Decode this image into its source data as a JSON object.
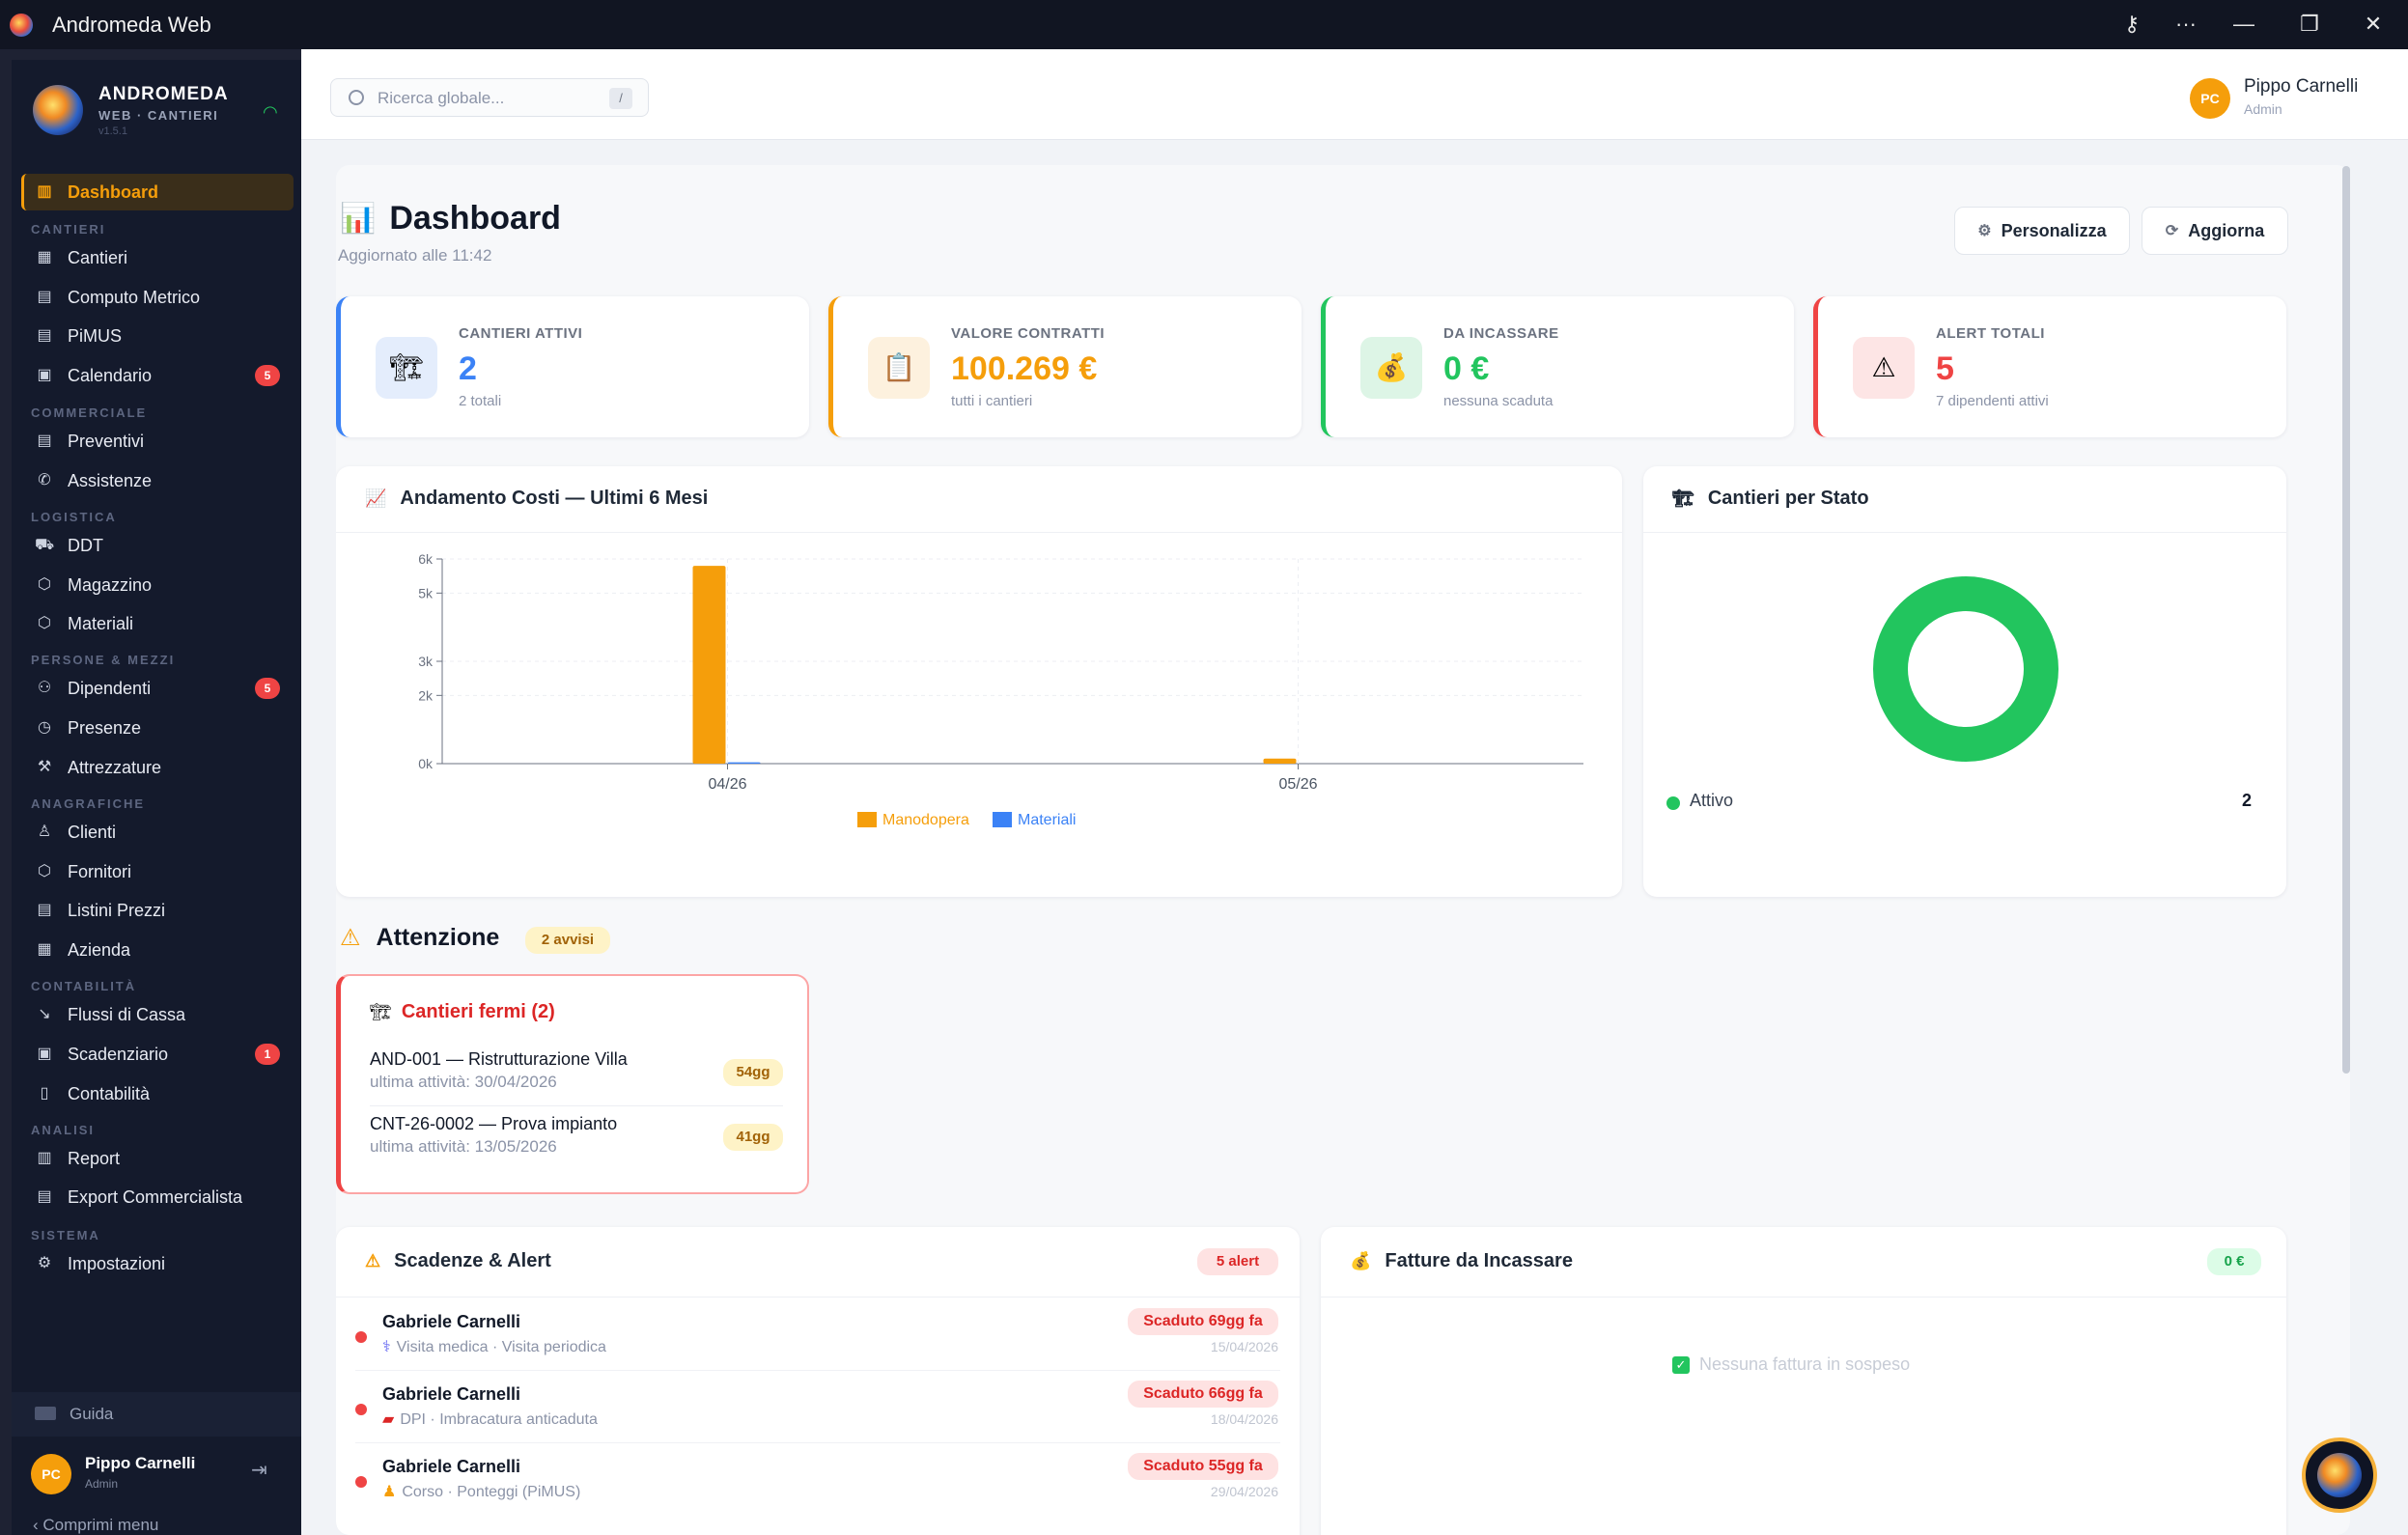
{
  "window": {
    "title": "Andromeda Web",
    "controls": [
      "key-icon",
      "more-icon",
      "minimize-icon",
      "restore-icon",
      "close-icon"
    ]
  },
  "brand": {
    "name": "ANDROMEDA",
    "sub": "WEB · CANTIERI",
    "version": "v1.5.1"
  },
  "nav": {
    "dashboard": "Dashboard",
    "sections": {
      "cantieri": "CANTIERI",
      "commerciale": "COMMERCIALE",
      "logistica": "LOGISTICA",
      "persone": "PERSONE & MEZZI",
      "anagrafiche": "ANAGRAFICHE",
      "contabilita": "CONTABILITÀ",
      "analisi": "ANALISI",
      "sistema": "SISTEMA"
    },
    "items": {
      "cantieri": "Cantieri",
      "computo": "Computo Metrico",
      "pimus": "PiMUS",
      "calendario": "Calendario",
      "preventivi": "Preventivi",
      "assistenze": "Assistenze",
      "ddt": "DDT",
      "magazzino": "Magazzino",
      "materiali": "Materiali",
      "dipendenti": "Dipendenti",
      "presenze": "Presenze",
      "attrezzature": "Attrezzature",
      "clienti": "Clienti",
      "fornitori": "Fornitori",
      "listini": "Listini Prezzi",
      "azienda": "Azienda",
      "flussi": "Flussi di Cassa",
      "scadenziario": "Scadenziario",
      "contabilita": "Contabilità",
      "report": "Report",
      "export": "Export Commercialista",
      "impostazioni": "Impostazioni"
    },
    "badges": {
      "calendario": "5",
      "dipendenti": "5",
      "scadenziario": "1"
    },
    "guida": "Guida",
    "collapse": "Comprimi menu"
  },
  "user": {
    "initials": "PC",
    "name": "Pippo Carnelli",
    "role": "Admin"
  },
  "search": {
    "placeholder": "Ricerca globale...",
    "shortcut": "/"
  },
  "page": {
    "title": "Dashboard",
    "updated": "Aggiornato alle 11:42",
    "personalizza": "Personalizza",
    "aggiorna": "Aggiorna"
  },
  "kpis": [
    {
      "label": "CANTIERI ATTIVI",
      "value": "2",
      "sub": "2 totali",
      "color": "#3b82f6"
    },
    {
      "label": "VALORE CONTRATTI",
      "value": "100.269 €",
      "sub": "tutti i cantieri",
      "color": "#f59e0b"
    },
    {
      "label": "DA INCASSARE",
      "value": "0 €",
      "sub": "nessuna scaduta",
      "color": "#22c55e"
    },
    {
      "label": "ALERT TOTALI",
      "value": "5",
      "sub": "7 dipendenti attivi",
      "color": "#ef4444"
    }
  ],
  "costi": {
    "title": "Andamento Costi — Ultimi 6 Mesi",
    "legend": [
      "Manodopera",
      "Materiali"
    ]
  },
  "chart_data": {
    "type": "bar",
    "categories": [
      "04/26",
      "05/26"
    ],
    "series": [
      {
        "name": "Manodopera",
        "values": [
          5800,
          150
        ],
        "color": "#f59e0b"
      },
      {
        "name": "Materiali",
        "values": [
          40,
          0
        ],
        "color": "#3b82f6"
      }
    ],
    "yticks": [
      "0k",
      "2k",
      "3k",
      "5k",
      "6k"
    ],
    "ylim": [
      0,
      6000
    ],
    "grid": true,
    "legend_position": "bottom"
  },
  "stato": {
    "title": "Cantieri per Stato",
    "items": [
      {
        "label": "Attivo",
        "count": "2",
        "color": "#22c55e"
      }
    ]
  },
  "attenzione": {
    "title": "Attenzione",
    "badge": "2 avvisi",
    "card_title": "Cantieri fermi (2)",
    "items": [
      {
        "name": "AND-001 — Ristrutturazione Villa",
        "sub": "ultima attività: 30/04/2026",
        "days": "54gg"
      },
      {
        "name": "CNT-26-0002 — Prova impianto",
        "sub": "ultima attività: 13/05/2026",
        "days": "41gg"
      }
    ]
  },
  "scadenze": {
    "title": "Scadenze & Alert",
    "badge": "5 alert",
    "items": [
      {
        "name": "Gabriele Carnelli",
        "detail": "Visita medica · Visita periodica",
        "status": "Scaduto 69gg fa",
        "date": "15/04/2026",
        "icon": "stethoscope-icon"
      },
      {
        "name": "Gabriele Carnelli",
        "detail": "DPI · Imbracatura anticaduta",
        "status": "Scaduto 66gg fa",
        "date": "18/04/2026",
        "icon": "dpi-icon"
      },
      {
        "name": "Gabriele Carnelli",
        "detail": "Corso · Ponteggi (PiMUS)",
        "status": "Scaduto 55gg fa",
        "date": "29/04/2026",
        "icon": "worker-icon"
      }
    ]
  },
  "fatture": {
    "title": "Fatture da Incassare",
    "badge": "0 €",
    "empty": "Nessuna fattura in sospeso"
  }
}
